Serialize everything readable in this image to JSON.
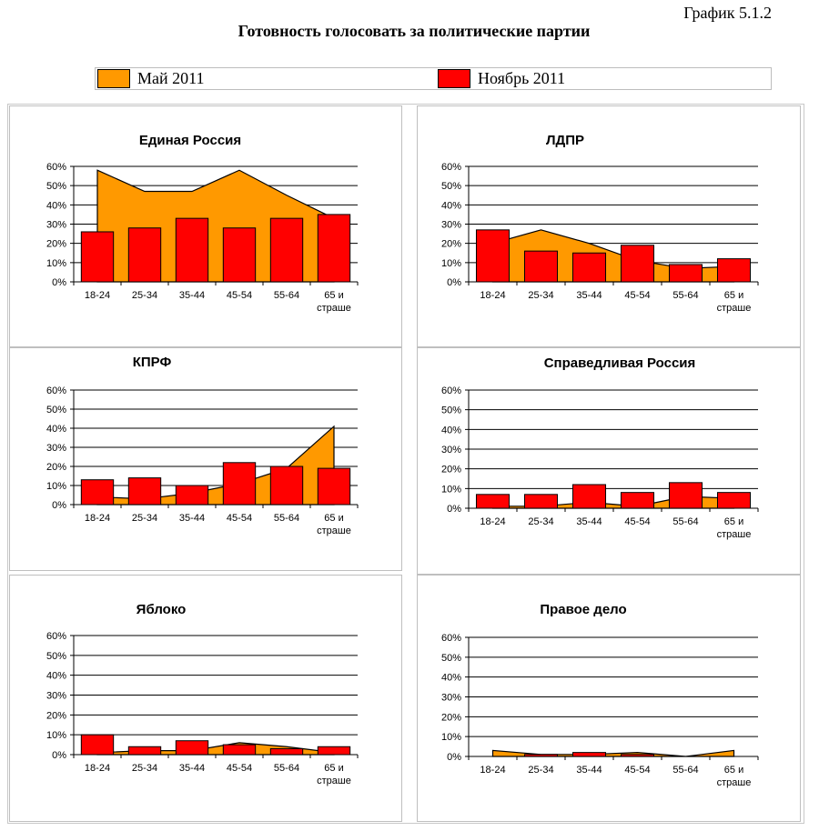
{
  "figure_label": "График 5.1.2",
  "title": "Готовность голосовать за политические партии",
  "legend": [
    {
      "label": "Май 2011",
      "color": "#FF9900"
    },
    {
      "label": "Ноябрь 2011",
      "color": "#FF0000"
    }
  ],
  "chart_data": [
    {
      "type": "bar",
      "title": "Единая Россия",
      "categories": [
        "18-24",
        "25-34",
        "35-44",
        "45-54",
        "55-64",
        "65 и страше"
      ],
      "ylim": [
        0,
        60
      ],
      "yticks": [
        "0%",
        "10%",
        "20%",
        "30%",
        "40%",
        "50%",
        "60%"
      ],
      "series": [
        {
          "name": "Май 2011",
          "type": "area",
          "color": "#FF9900",
          "values": [
            58,
            47,
            47,
            58,
            45,
            33
          ]
        },
        {
          "name": "Ноябрь 2011",
          "type": "bar",
          "color": "#FF0000",
          "values": [
            26,
            28,
            33,
            28,
            33,
            35
          ]
        }
      ]
    },
    {
      "type": "bar",
      "title": "ЛДПР",
      "categories": [
        "18-24",
        "25-34",
        "35-44",
        "45-54",
        "55-64",
        "65 и страше"
      ],
      "ylim": [
        0,
        60
      ],
      "yticks": [
        "0%",
        "10%",
        "20%",
        "30%",
        "40%",
        "50%",
        "60%"
      ],
      "series": [
        {
          "name": "Май 2011",
          "type": "area",
          "color": "#FF9900",
          "values": [
            20,
            27,
            20,
            11,
            7,
            8
          ]
        },
        {
          "name": "Ноябрь 2011",
          "type": "bar",
          "color": "#FF0000",
          "values": [
            27,
            16,
            15,
            19,
            9,
            12
          ]
        }
      ]
    },
    {
      "type": "bar",
      "title": "КПРФ",
      "categories": [
        "18-24",
        "25-34",
        "35-44",
        "45-54",
        "55-64",
        "65 и страше"
      ],
      "ylim": [
        0,
        60
      ],
      "yticks": [
        "0%",
        "10%",
        "20%",
        "30%",
        "40%",
        "50%",
        "60%"
      ],
      "series": [
        {
          "name": "Май 2011",
          "type": "area",
          "color": "#FF9900",
          "values": [
            4,
            3,
            6,
            11,
            19,
            41
          ]
        },
        {
          "name": "Ноябрь 2011",
          "type": "bar",
          "color": "#FF0000",
          "values": [
            13,
            14,
            10,
            22,
            20,
            19
          ]
        }
      ]
    },
    {
      "type": "bar",
      "title": "Справедливая Россия",
      "categories": [
        "18-24",
        "25-34",
        "35-44",
        "45-54",
        "55-64",
        "65 и страше"
      ],
      "ylim": [
        0,
        60
      ],
      "yticks": [
        "0%",
        "10%",
        "20%",
        "30%",
        "40%",
        "50%",
        "60%"
      ],
      "series": [
        {
          "name": "Май 2011",
          "type": "area",
          "color": "#FF9900",
          "values": [
            1,
            1,
            3,
            1,
            6,
            5
          ]
        },
        {
          "name": "Ноябрь 2011",
          "type": "bar",
          "color": "#FF0000",
          "values": [
            7,
            7,
            12,
            8,
            13,
            8
          ]
        }
      ]
    },
    {
      "type": "bar",
      "title": "Яблоко",
      "categories": [
        "18-24",
        "25-34",
        "35-44",
        "45-54",
        "55-64",
        "65 и страше"
      ],
      "ylim": [
        0,
        60
      ],
      "yticks": [
        "0%",
        "10%",
        "20%",
        "30%",
        "40%",
        "50%",
        "60%"
      ],
      "series": [
        {
          "name": "Май 2011",
          "type": "area",
          "color": "#FF9900",
          "values": [
            1,
            2,
            2,
            6,
            4,
            1
          ]
        },
        {
          "name": "Ноябрь 2011",
          "type": "bar",
          "color": "#FF0000",
          "values": [
            10,
            4,
            7,
            5,
            3,
            4
          ]
        }
      ]
    },
    {
      "type": "bar",
      "title": "Правое дело",
      "categories": [
        "18-24",
        "25-34",
        "35-44",
        "45-54",
        "55-64",
        "65 и страше"
      ],
      "ylim": [
        0,
        60
      ],
      "yticks": [
        "0%",
        "10%",
        "20%",
        "30%",
        "40%",
        "50%",
        "60%"
      ],
      "series": [
        {
          "name": "Май 2011",
          "type": "area",
          "color": "#FF9900",
          "values": [
            3,
            1,
            1,
            2,
            0,
            3
          ]
        },
        {
          "name": "Ноябрь 2011",
          "type": "bar",
          "color": "#FF0000",
          "values": [
            0,
            1,
            2,
            1,
            0,
            0
          ]
        }
      ]
    }
  ]
}
